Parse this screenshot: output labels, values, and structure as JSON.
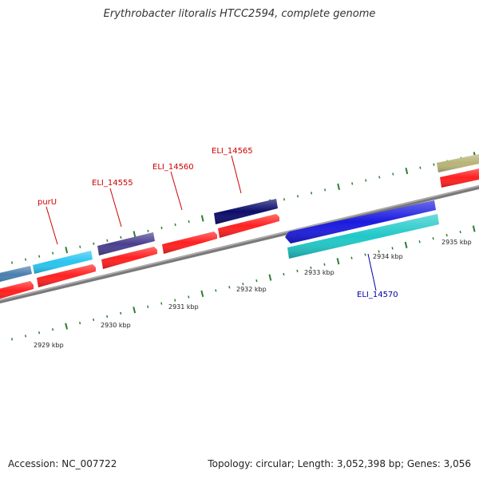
{
  "title": "Erythrobacter litoralis HTCC2594, complete genome",
  "footer": {
    "accession": "Accession: NC_007722",
    "summary": "Topology: circular; Length: 3,052,398 bp; Genes: 3,056"
  },
  "colors": {
    "backbone": "#8a8a8a",
    "tick": "#2e7d32",
    "label_red": "#cc0000",
    "label_blue": "#0000aa"
  },
  "ruler": [
    "2929 kbp",
    "2930 kbp",
    "2931 kbp",
    "2932 kbp",
    "2933 kbp",
    "2934 kbp",
    "2935 kbp"
  ],
  "genes": [
    {
      "name": "",
      "color": "#4a7fb0",
      "strand": "top"
    },
    {
      "name": "",
      "color": "#ff2020",
      "strand": "bottom"
    },
    {
      "name": "purU",
      "color": "#29c4f0",
      "strand": "top",
      "label_color": "#cc0000"
    },
    {
      "name": "",
      "color": "#ff2020",
      "strand": "bottom"
    },
    {
      "name": "ELI_14555",
      "color": "#4a3f8f",
      "strand": "top",
      "label_color": "#cc0000"
    },
    {
      "name": "",
      "color": "#ff2020",
      "strand": "bottom"
    },
    {
      "name": "ELI_14560",
      "color": "#ff2020",
      "strand": "bottom",
      "label_color": "#cc0000"
    },
    {
      "name": "ELI_14565",
      "color": "#0b0b6b",
      "strand": "top",
      "label_color": "#cc0000"
    },
    {
      "name": "",
      "color": "#ff2020",
      "strand": "bottom"
    },
    {
      "name": "",
      "color": "#1a1ae0",
      "strand": "top"
    },
    {
      "name": "ELI_14570",
      "color": "#20c8c8",
      "strand": "bottom",
      "label_color": "#0000aa"
    },
    {
      "name": "",
      "color": "#b8b478",
      "strand": "top"
    },
    {
      "name": "",
      "color": "#ff2020",
      "strand": "bottom"
    }
  ]
}
